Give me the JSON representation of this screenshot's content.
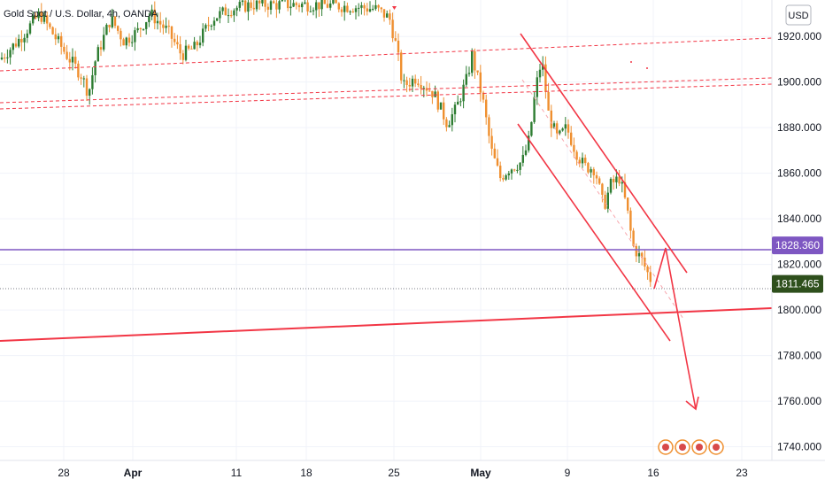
{
  "chart_data": {
    "type": "candlestick",
    "title": "Gold Spot / U.S. Dollar, 4h, OANDA",
    "currency_button": "USD",
    "y_ticks": [
      "1920.000",
      "1900.000",
      "1880.000",
      "1860.000",
      "1840.000",
      "1820.000",
      "1800.000",
      "1780.000",
      "1760.000",
      "1740.000"
    ],
    "y_tick_values": [
      1920,
      1900,
      1880,
      1860,
      1840,
      1820,
      1800,
      1780,
      1760,
      1740
    ],
    "ylim": [
      1734,
      1936
    ],
    "x_ticks": [
      {
        "label": "28",
        "bold": false
      },
      {
        "label": "Apr",
        "bold": true
      },
      {
        "label": "11",
        "bold": false
      },
      {
        "label": "18",
        "bold": false
      },
      {
        "label": "25",
        "bold": false
      },
      {
        "label": "May",
        "bold": true
      },
      {
        "label": "9",
        "bold": false
      },
      {
        "label": "16",
        "bold": false
      },
      {
        "label": "23",
        "bold": false
      }
    ],
    "price_badges": [
      {
        "value": 1828.36,
        "label": "1828.360",
        "color": "#7e57c2",
        "name": "horizontal-level"
      },
      {
        "value": 1811.465,
        "label": "1811.465",
        "color": "#2e4f1c",
        "name": "last-price"
      }
    ],
    "colors": {
      "up": "#2e7d32",
      "down": "#ef8f2f",
      "trend": "#f23645",
      "level": "#7e57c2"
    },
    "grid": true,
    "legend": "none"
  }
}
